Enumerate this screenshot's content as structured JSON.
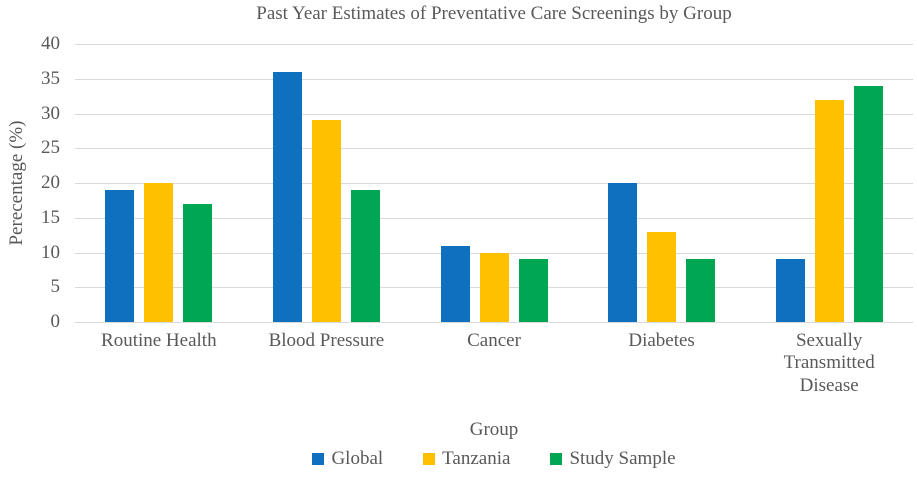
{
  "chart_data": {
    "type": "bar",
    "title": "Past Year Estimates of Preventative Care Screenings by Group",
    "xlabel": "Group",
    "ylabel": "Perecentage (%)",
    "categories": [
      "Routine Health",
      "Blood Pressure",
      "Cancer",
      "Diabetes",
      "Sexually Transmitted Disease"
    ],
    "series": [
      {
        "name": "Global",
        "color": "#1070c0",
        "values": [
          19,
          36,
          11,
          20,
          9
        ]
      },
      {
        "name": "Tanzania",
        "color": "#ffc000",
        "values": [
          20,
          29,
          10,
          13,
          32
        ]
      },
      {
        "name": "Study Sample",
        "color": "#00a651",
        "values": [
          17,
          19,
          9,
          9,
          34
        ]
      }
    ],
    "ylim": [
      0,
      40
    ],
    "ytick_step": 5,
    "grid": true,
    "legend_position": "bottom"
  },
  "colors": {
    "gridline": "#d9d9d9",
    "text": "#595959",
    "background": "#ffffff"
  }
}
